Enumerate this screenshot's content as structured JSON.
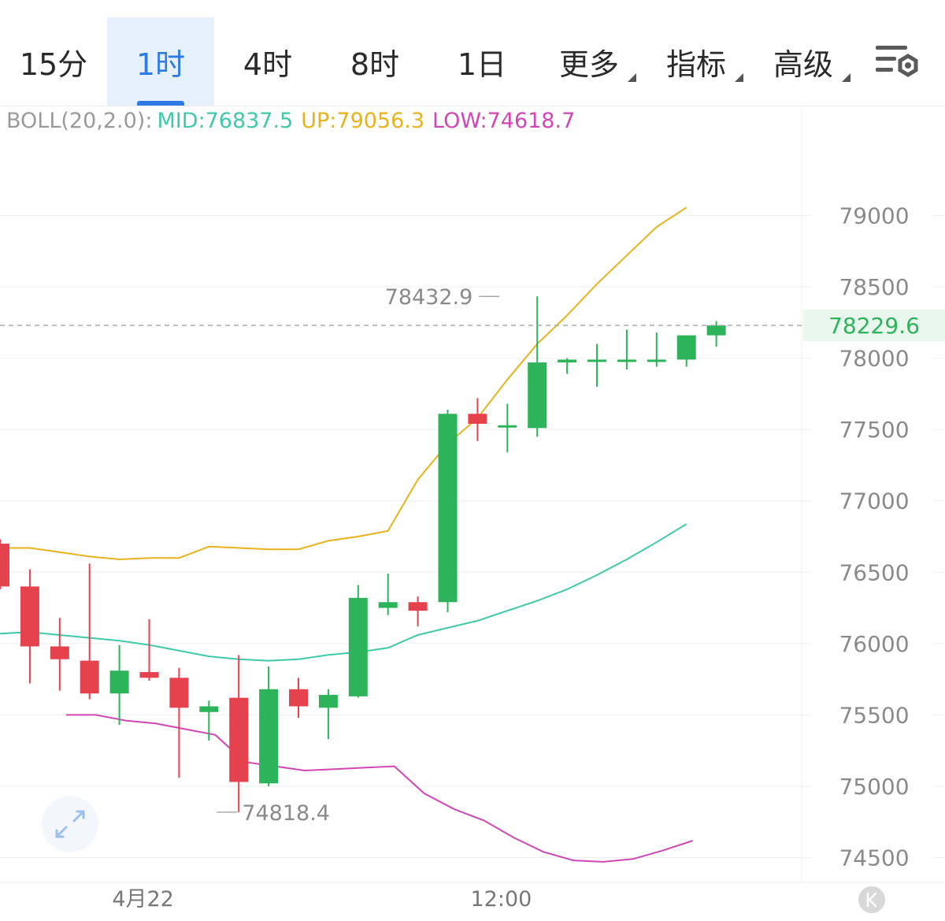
{
  "tabs": [
    {
      "label": "15分",
      "active": false,
      "has_menu": false
    },
    {
      "label": "1时",
      "active": true,
      "has_menu": false
    },
    {
      "label": "4时",
      "active": false,
      "has_menu": false
    },
    {
      "label": "8时",
      "active": false,
      "has_menu": false
    },
    {
      "label": "1日",
      "active": false,
      "has_menu": false
    },
    {
      "label": "更多",
      "active": false,
      "has_menu": true
    },
    {
      "label": "指标",
      "active": false,
      "has_menu": true
    },
    {
      "label": "高级",
      "active": false,
      "has_menu": true
    }
  ],
  "settings_icon": "chart-settings-icon",
  "indicator": {
    "name": "BOLL(20,2.0):",
    "mid": "MID:76837.5",
    "up": "UP:79056.3",
    "low": "LOW:74618.7"
  },
  "colors": {
    "up_candle": "#e5424e",
    "down_candle": "#2db35a",
    "mid_line": "#3ec9a8",
    "upper_line": "#e8b21c",
    "lower_line": "#d146b4",
    "current_price_text": "#2db35a",
    "accent": "#2f7be6"
  },
  "chart_data": {
    "type": "candlestick",
    "y_ticks": [
      "79000",
      "78500",
      "78000",
      "77500",
      "77000",
      "76500",
      "76000",
      "75500",
      "75000",
      "74500"
    ],
    "ylim": [
      74330,
      79790
    ],
    "x_labels": [
      {
        "text": "4月22",
        "index": 4
      },
      {
        "text": "12:00",
        "index": 16
      }
    ],
    "current_price": "78229.6",
    "high_marker": {
      "text": "78432.9",
      "index": 17,
      "value": 78432.9
    },
    "low_marker": {
      "text": "74818.4",
      "index": 7,
      "value": 74818.4
    },
    "candles": [
      {
        "open": 76700,
        "high": 76730,
        "close": 76400,
        "low": 76380
      },
      {
        "open": 76400,
        "high": 76520,
        "close": 75980,
        "low": 75720
      },
      {
        "open": 75980,
        "high": 76180,
        "close": 75890,
        "low": 75670
      },
      {
        "open": 75880,
        "high": 76560,
        "close": 75650,
        "low": 75610
      },
      {
        "open": 75650,
        "high": 75990,
        "close": 75810,
        "low": 75430
      },
      {
        "open": 75800,
        "high": 76170,
        "close": 75760,
        "low": 75740
      },
      {
        "open": 75760,
        "high": 75830,
        "close": 75550,
        "low": 75060
      },
      {
        "open": 75520,
        "high": 75600,
        "close": 75560,
        "low": 75320
      },
      {
        "open": 75620,
        "high": 75920,
        "close": 75030,
        "low": 74818.4
      },
      {
        "open": 75020,
        "high": 75840,
        "close": 75680,
        "low": 75000
      },
      {
        "open": 75680,
        "high": 75760,
        "close": 75560,
        "low": 75480
      },
      {
        "open": 75550,
        "high": 75680,
        "close": 75640,
        "low": 75330
      },
      {
        "open": 75630,
        "high": 76410,
        "close": 76320,
        "low": 75620
      },
      {
        "open": 76250,
        "high": 76490,
        "close": 76290,
        "low": 76200
      },
      {
        "open": 76290,
        "high": 76330,
        "close": 76230,
        "low": 76120
      },
      {
        "open": 76290,
        "high": 77640,
        "close": 77610,
        "low": 76220
      },
      {
        "open": 77610,
        "high": 77720,
        "close": 77540,
        "low": 77420
      },
      {
        "open": 77530,
        "high": 77680,
        "close": 77530,
        "low": 77340
      },
      {
        "open": 77510,
        "high": 78432.9,
        "close": 77970,
        "low": 77450
      },
      {
        "open": 77970,
        "high": 78000,
        "close": 77990,
        "low": 77890
      },
      {
        "open": 77990,
        "high": 78100,
        "close": 77990,
        "low": 77800
      },
      {
        "open": 77990,
        "high": 78200,
        "close": 77990,
        "low": 77920
      },
      {
        "open": 77990,
        "high": 78180,
        "close": 77990,
        "low": 77940
      },
      {
        "open": 77990,
        "high": 78160,
        "close": 78160,
        "low": 77940
      },
      {
        "open": 78160,
        "high": 78260,
        "close": 78229.6,
        "low": 78080
      }
    ],
    "series": [
      {
        "name": "UP",
        "color_key": "upper_line",
        "values": [
          76670,
          76670,
          76640,
          76610,
          76590,
          76600,
          76600,
          76680,
          76670,
          76660,
          76660,
          76720,
          76750,
          76790,
          77150,
          77400,
          77580,
          77850,
          78100,
          78300,
          78520,
          78720,
          78920,
          79056.3
        ]
      },
      {
        "name": "MID",
        "color_key": "mid_line",
        "values": [
          76070,
          76080,
          76060,
          76040,
          76020,
          75990,
          75950,
          75910,
          75890,
          75880,
          75890,
          75920,
          75940,
          75970,
          76060,
          76110,
          76160,
          76230,
          76300,
          76380,
          76480,
          76590,
          76710,
          76837.5
        ]
      },
      {
        "name": "LOW",
        "color_key": "lower_line",
        "values": [
          75500,
          75500,
          75460,
          75440,
          75400,
          75360,
          75170,
          75140,
          75110,
          75120,
          75130,
          75140,
          74950,
          74840,
          74760,
          74640,
          74540,
          74480,
          74470,
          74490,
          74550,
          74618.7
        ]
      }
    ],
    "series_start_index": [
      0,
      0,
      2
    ],
    "grid": true
  }
}
